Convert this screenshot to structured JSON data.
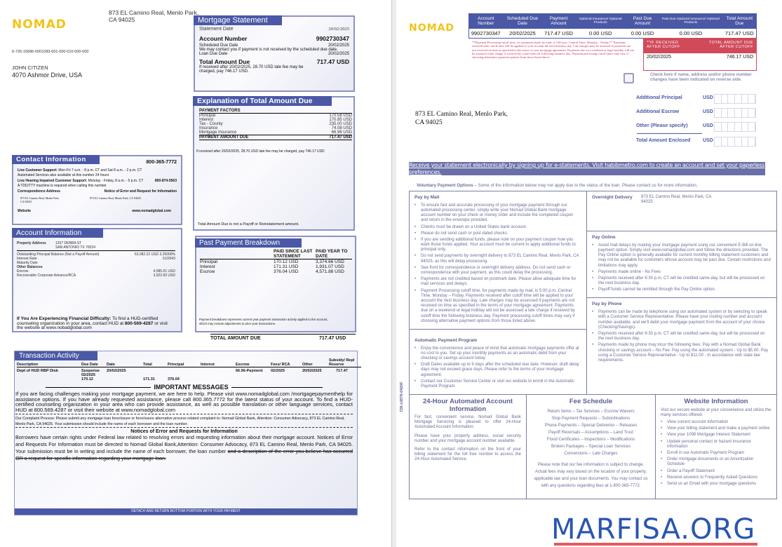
{
  "brand": {
    "name": "NOMAD",
    "color": "#f0c419",
    "accent": "#4a58a6",
    "alert": "#d04a5a"
  },
  "front": {
    "sender_address": [
      "873 EL Camino Real, Menlo Park,",
      "CA 94025"
    ],
    "barcode_line": "6-726-15686-0001083-001-000-010-000-000",
    "recipient": {
      "name": "JOHN CITIZEN",
      "address": "4070 Ashmor Drive, USA"
    },
    "statement": {
      "title": "Mortgage Statement",
      "date_label": "Statement   Date",
      "date": "20/02/2025",
      "account_label": "Account Number",
      "account": "9902730347",
      "sched_label": "Scheduled Due Date",
      "sched": "20/02/2025",
      "contact_note": "We may contact you if payment is not received by the scheduled due date.",
      "loan_label": "Loan Due Date",
      "loan": "20/02/2025",
      "total_label": "Total Amount Due",
      "total": "717.47 USD",
      "late_note": "If received after 20/02/2025, 28.70 USD late fee may be charged, pay 746.17 USD."
    },
    "explanation": {
      "title": "Explanation of Total Amount Due",
      "factors_label": "PAYMENT FACTORS",
      "items": [
        {
          "label": "Principal",
          "value": "170.58 USD"
        },
        {
          "label": "Interest",
          "value": "170.85 USD"
        },
        {
          "label": "Tax - County",
          "value": "235.00 USD"
        },
        {
          "label": "Insurance",
          "value": "74.08 USD"
        },
        {
          "label": "Mortgage Insurance",
          "value": "66.96 USD"
        }
      ],
      "total_label": "PAYMENT AMOUNT DUE",
      "total": "717.47 USD",
      "late_note": "If received after 20/02/2025, 28.70 USD late fee may be charged, pay 746.17 USD",
      "footer": "Total Amount Due is not a Payoff or Reinstatement amount."
    },
    "contact": {
      "title": "Contact Information",
      "phone": "800-365-7772",
      "live_label": "Live Customer Support:",
      "live": "Mon-Fri 7 a.m. - 8 p.m. CT and Sat 8 a.m. - 2 p.m. CT",
      "automated": "Automated Services also available at this number 24 hours",
      "hearing_label": "Live Hearing Impaired Customer Support:",
      "hearing": "Monday - Friday, 8 a.m. - 5 p.m. CT",
      "hearing_phone": "800-874-5563",
      "tdd": "A TDD/TTY machine is required when calling this number",
      "corr_label": "Correspondence Address",
      "notice_label": "Notice of Error and Request for Information",
      "corr_addr": "873 EL Camino Real, Menlo Park, CA 94025",
      "notice_addr": "873 EL Camino Real, Menlo Park, CA 94025",
      "website_label": "Website",
      "website": "www.nomadglobal.com"
    },
    "account": {
      "title": "Account Information",
      "property_label": "Property Address",
      "property": [
        "1207 DEBRA ST",
        "SAN ANTONIO TX 78224"
      ],
      "outstanding_label": "Outstanding Principal Balance (Not a Payoff Amount)",
      "outstanding": "63,082.22 USD",
      "rate_label": "Interest Rate",
      "rate": "3.25000%",
      "maturity_label": "Maturity Date",
      "maturity": "01/2043",
      "other_label": "Other Balances",
      "escrow_label": "Escrow",
      "escrow": "4,585.01 USD",
      "rca_label": "Recoverable Corporate Advance/RCA",
      "rca": "3,922.60 USD",
      "hardship_bold": "If You Are Experiencing Financial Difficulty:",
      "hardship": " To find a HUD-certified counseling organization in your area, contact HUD at ",
      "hud_phone": "800-569-4287",
      "hardship_tail": " or visit the website at www.nobadglobal.com"
    },
    "past": {
      "title": "Past Payment Breakdown",
      "col1": "PAID SINCE LAST STATEMENT",
      "col2": "PAID YEAR TO DATE",
      "rows": [
        {
          "label": "Principal",
          "since": "170.12 USD",
          "ytd": "3,374.66 USD"
        },
        {
          "label": "Interest",
          "since": "171.31 USD",
          "ytd": "1,931.07 USD"
        },
        {
          "label": "Escrow",
          "since": "376.04 USD",
          "ytd": "4,571.88 USD"
        }
      ],
      "note": "Payment breakdown represents current year payment transaction activity applied to the account, which may include adjustments to prior year transactions.",
      "total_label": "TOTAL AMOUNT DUE",
      "total": "717.47 USD"
    },
    "transactions": {
      "title": "Transaction Activity",
      "headers": [
        "Description",
        "Due Date",
        "Date",
        "Total",
        "Principal",
        "Interest",
        "Escrow",
        "Fees/ RCA",
        "Other",
        "Subsidy/ Repl Reserve"
      ],
      "row": {
        "description": "Dept of HUD RBP Disb",
        "due": "Suspense 02/2025 170.12",
        "date": "20/02/2025",
        "total": "171.31",
        "principal": "376.04",
        "escrow": "66.96-Payment",
        "fees": "02/2025",
        "other": "20/02/2025",
        "subsidy": "717.47"
      }
    },
    "important": {
      "title": "IMPORTANT MESSAGES",
      "body": "If you are facing challenges making your mortgage payment, we are here to help. Please visit www.nomadglobal.com /mortgagepaymenthelp for assistance options. If you have already requested assistance, please call 800.365.7772 for the latest status of your account. To find a HUD-certified counseling organization in your area who can provide assistance, as well as possible translation or other language services, contact HUD at 800.569.4287 or visit their website at www.nomadglobal.com",
      "complaint": "Our Complaint Process: Please submit any mortgage loan foreclosure or foreclosure alternative process related complaint to: Nomad Global Bank, Attention: Consumer Advocacy, 873 EL Camino Real, Menlo Park, CA 94025. Your submission should include the name of each borrower and the loan number.",
      "notices_title": "Notices of Error and Requests for Information",
      "notices": "Borrowers have certain rights under Federal law related to resolving errors and requesting information about their mortgage account. Notices of Error and Requests For Information must be directed to Nomad Global Bank,Attention: Consumer Advocacy, 873 EL Camino Real, Menlo Park, CA 94025. Your submission must be in writing and include the name of each borrower, the loan number",
      "notices_strike": "and a description of the error you believe has occurred OR a request for specific information regarding your mortgage loan.",
      "detach": "DETACH AND RETURN BOTTOM PORTION WITH YOUR PAYMENT"
    }
  },
  "coupon": {
    "headers": [
      "Account Number",
      "Scheduled Due Date",
      "Payment Amount",
      "Optional Insurance/ Optional Products",
      "Past Due Amount",
      "Past Due Optional Insurance/ Optional Products",
      "Total Amount Due"
    ],
    "values": [
      "9902730347",
      "20/02/2025",
      "717.47 USD",
      "0.00 USD",
      "0.00 USD",
      "0.00 USD",
      "717.47 USD"
    ],
    "cutoff_note": "**Payment Processing cutoff time, for payments made by mail, is 5:00 p.m. Central Time, Monday – Friday.** Payments received after cutoff time will be applied to your account the next business day. Late charges may be assessed if payments are not received on time as specified in the terms of your mortgage agreement. Payments due on a weekend or legal holiday will not be assessed a late charge if received by cutoff time the following business day. Payment processing cutoff times may vary if choosing alternative payment options from those listed above.",
    "after_label": "**IF RECEIVED AFTER CUTOFF",
    "after_total_label": "TOTAL AMOUNT DUE AFTER CUTOFF",
    "after_date": "20/02/2025",
    "after_total": "746.17 USD",
    "checkbox_label": "Check here if name, address and/or phone number changes have been indicated on reverse side.",
    "fields": [
      {
        "label": "Additional Principal",
        "currency": "USD"
      },
      {
        "label": "Additional Escrow",
        "currency": "USD"
      },
      {
        "label": "Other (Please specify)",
        "currency": "USD"
      },
      {
        "label": "Total Amount Enclosed",
        "currency": "USD"
      }
    ],
    "remit_address": [
      "873 EL Camino Real, Menlo Park,",
      "CA 94025"
    ]
  },
  "back": {
    "estatement": "Receive your statement electronically by signing up for e-statements. Visit habibmetro.com to create an account and set your paperless preferences.",
    "voluntary_label": "Voluntary Payment Options",
    "voluntary": " –  Some of the information below may not apply due to the status of the loan. Please contact us for more information.",
    "mail": {
      "title": "Pay by Mail",
      "items": [
        "To ensure fast and accurate processing of your mortgage payment through our automated processing center, simply write your Nomad Global Bank mortgage account number on your check or money order and include the completed coupon and return in the envelope provided.",
        "Checks must be drawn on a United States bank account.",
        "Please do not send cash or post dated checks.",
        "If you are sending additional funds, please note on your payment coupon how you want those funds applied. Your account must be current to apply additional funds to principal only.",
        "Do not send payments by overnight delivery to 873 EL Camino Real, Menlo Park, CA 94025, as this will delay processing.",
        "See front for correspondence or overnight delivery address. Do not send cash or correspondence with your payment, as this could delay the processing.",
        "Payments are not credited based on postmark date. Please allow adequate time for mail services and delays.",
        "Payment Processing cutoff time, for payments made by mail, is 5:00 p.m. Central Time, Monday – Friday. Payments received after cutoff time will be applied to your account the next business day. Late charges may be assessed if payments are not received on time as specified in the terms of your mortgage agreement. Payments due on a weekend or legal holiday will not be assessed a late charge if received by cutoff time the following business day. Payment processing cutoff times may vary if choosing alternative payment options from those listed above."
      ]
    },
    "overnight": {
      "title": "Overnight Delivery",
      "address": "873 EL Camino Real, Menlo Park, CA 94025"
    },
    "online": {
      "title": "Pay Online",
      "items": [
        "Avoid mail delays by making your mortgage payment using our convenient E-Bill on-line payment option. Simply visit www.nomadglobal.com and follow the directions provided. The Pay Online option is generally available for current monthly billing statement customers and may not be available for customers whose account may be past due. Certain restrictions and limitations may apply.",
        "Payments made online - No Fees",
        "Payments received after 6:30 p.m. CT will be credited same-day, but will be processed on the next business day.",
        "Payoff funds cannot be remitted through the Pay Online option."
      ]
    },
    "phone": {
      "title": "Pay by Phone",
      "items": [
        "Payments can be made by telephone using our automated system or by selecting to speak with a Customer Service Representative. Please have your routing number and account number available, and we'll debit your mortgage payment from the account of your choice. (Checking/Savings).",
        "Payments received after 6:30 p.m. CT will be credited same-day, but will be processed on the next business day.",
        "Payments made by phone may incur the following fees: Pay with a Nomad Global Bank checking or savings account – No Fee. Pay using the automated system - Up to $5.00. Pay using a Customer Service Representative - Up to $11.00 - In accordance with state law requirements."
      ]
    },
    "auto": {
      "title": "Automatic Payment Program",
      "items": [
        "Enjoy the convenience and peace of mind that automatic mortgage payments offer at no cost to you. Set up your monthly payments as an automatic debit from your checking or savings account today.",
        "Draft Dates available up to 9 days after the scheduled due date. However, draft delay days may not exceed grace days. Please refer to the terms of your mortgage agreement.",
        "Contact our Customer Service Center or visit our website to enroll in the Automatic Payment Program."
      ]
    },
    "automated": {
      "title": "24-Hour Automated Account Information",
      "paras": [
        "For fast, convenient service, Nomad Global Bank Mortgage Servicing is pleased to offer 24-Hour Automated Account Information.",
        "Please have your property address, social security number and your mortgage account number available.",
        "Refer to the contact information on the front of your billing statement for the toll free number to access the 24-Hour Automated Service."
      ]
    },
    "fees": {
      "title": "Fee Schedule",
      "lines": [
        "Return Items – Tax Services – Escrow Waivers",
        "Stop Payment Requests – Subordinations",
        "Phone Payments – Special Deliveries – Releases",
        "Payoff Reversals – Assumptions – Land Trust",
        "Flood Certificates – Inspections – Modifications",
        "Broken Packages – Special Loan Services",
        "Conversions – Late Charges"
      ],
      "note": "Please note that our fee information is subject to change. Actual fees may vary based on the location of your property, applicable law and your loan documents. You may contact us with any questions regarding fees at 1-800-365-7772."
    },
    "website": {
      "title": "Website Information",
      "intro": "Visit our secure website at your convenience and utilize the many services offered:",
      "items": [
        "View current account information",
        "View your billing statement and make a payment online",
        "View your 1098 Mortgage Interest Statement",
        "Update personal contact or hazard insurance information",
        "Enroll in our Automatic Payment Program",
        "Order mortgage documents or an Amortization Schedule",
        "Order a Payoff Statement",
        "Receive answers to Frequently Asked Questions",
        "Send us an Email with your mortgage questions"
      ]
    },
    "side_code": "728-x3878-0420F"
  },
  "watermark": {
    "text": "MARFISA.ORG",
    "color": "#2a56b0",
    "underline": "#e8585a"
  }
}
